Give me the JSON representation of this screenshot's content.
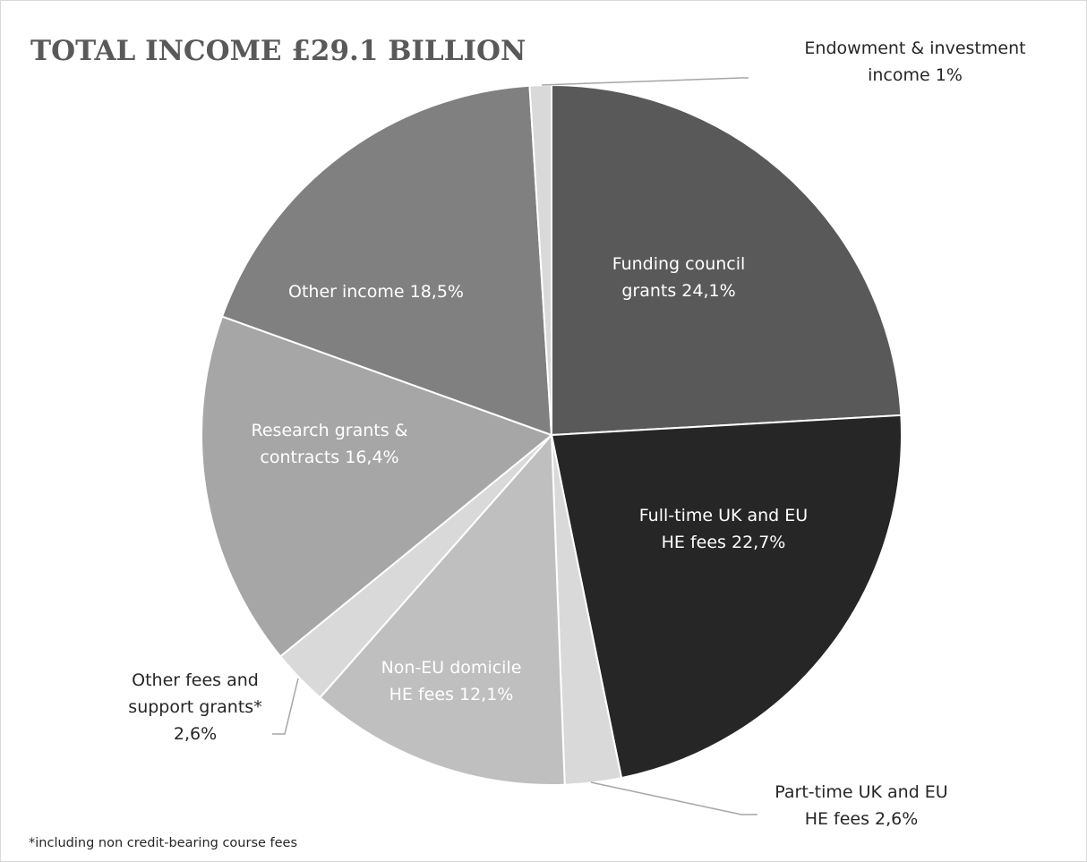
{
  "chart_data": {
    "type": "pie",
    "title": "TOTAL INCOME  £29.1 BILLION",
    "footnote": "*including non credit-bearing course fees",
    "start_angle_deg": 0,
    "direction": "clockwise",
    "slices": [
      {
        "label_lines": [
          "Funding council",
          "grants 24,1%"
        ],
        "value": 24.1,
        "color": "#595959",
        "text_color": "#ffffff"
      },
      {
        "label_lines": [
          "Full-time UK and EU",
          "HE fees 22,7%"
        ],
        "value": 22.7,
        "color": "#262626",
        "text_color": "#ffffff"
      },
      {
        "label_lines": [
          "Part-time UK and EU",
          "HE fees 2,6%"
        ],
        "value": 2.6,
        "color": "#d9d9d9",
        "text_color": "#262626"
      },
      {
        "label_lines": [
          "Non-EU domicile",
          "HE fees 12,1%"
        ],
        "value": 12.1,
        "color": "#bfbfbf",
        "text_color": "#ffffff"
      },
      {
        "label_lines": [
          "Other fees and",
          "support grants*",
          "2,6%"
        ],
        "value": 2.6,
        "color": "#d9d9d9",
        "text_color": "#262626"
      },
      {
        "label_lines": [
          "Research grants &",
          "contracts 16,4%"
        ],
        "value": 16.4,
        "color": "#a6a6a6",
        "text_color": "#ffffff"
      },
      {
        "label_lines": [
          "Other income 18,5%"
        ],
        "value": 18.5,
        "color": "#808080",
        "text_color": "#ffffff"
      },
      {
        "label_lines": [
          "Endowment & investment",
          "income 1%"
        ],
        "value": 1.0,
        "color": "#d9d9d9",
        "text_color": "#262626"
      }
    ]
  }
}
